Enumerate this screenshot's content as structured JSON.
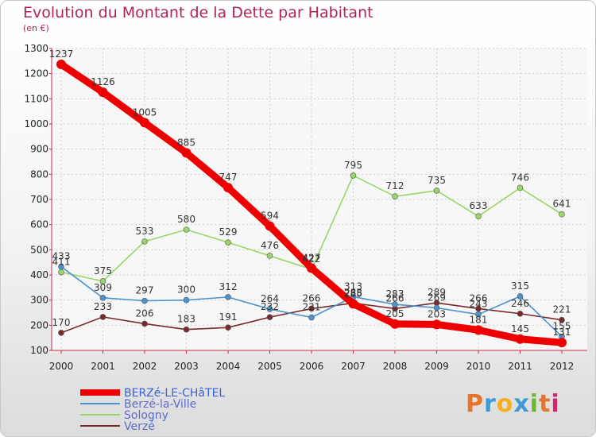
{
  "header": {
    "title": "Evolution du Montant de la Dette par Habitant",
    "unit": "(en €)"
  },
  "logo": {
    "text": "Proxiti",
    "colors": [
      "#e8742a",
      "#3d9ad6",
      "#f3b020",
      "#3d9ad6",
      "#6ab82e",
      "#e8742a",
      "#c42d6e"
    ]
  },
  "chart_data": {
    "type": "line",
    "title": "Evolution du Montant de la Dette par Habitant",
    "ylabel": "(en €)",
    "x": [
      2000,
      2001,
      2002,
      2003,
      2004,
      2005,
      2006,
      2007,
      2008,
      2009,
      2010,
      2011,
      2012
    ],
    "ylim": [
      100,
      1300
    ],
    "yticks": [
      100,
      200,
      300,
      400,
      500,
      600,
      700,
      800,
      900,
      1000,
      1100,
      1200,
      1300
    ],
    "grid": true,
    "legend": "bottom-left",
    "series": [
      {
        "name": "BERZé-LE-CHâTEL",
        "color": "#ee0000",
        "values": [
          1237,
          1126,
          1005,
          885,
          747,
          594,
          427,
          285,
          205,
          203,
          181,
          145,
          131
        ]
      },
      {
        "name": "Berzé-la-Ville",
        "color": "#4a93cf",
        "values": [
          433,
          309,
          297,
          300,
          312,
          264,
          231,
          313,
          283,
          269,
          243,
          315,
          155
        ]
      },
      {
        "name": "Sologny",
        "color": "#99d66a",
        "values": [
          411,
          375,
          533,
          580,
          529,
          476,
          422,
          795,
          712,
          735,
          633,
          746,
          641
        ]
      },
      {
        "name": "Verzé",
        "color": "#7a2a2a",
        "values": [
          170,
          233,
          206,
          183,
          191,
          232,
          266,
          288,
          266,
          289,
          266,
          246,
          221
        ]
      }
    ]
  }
}
